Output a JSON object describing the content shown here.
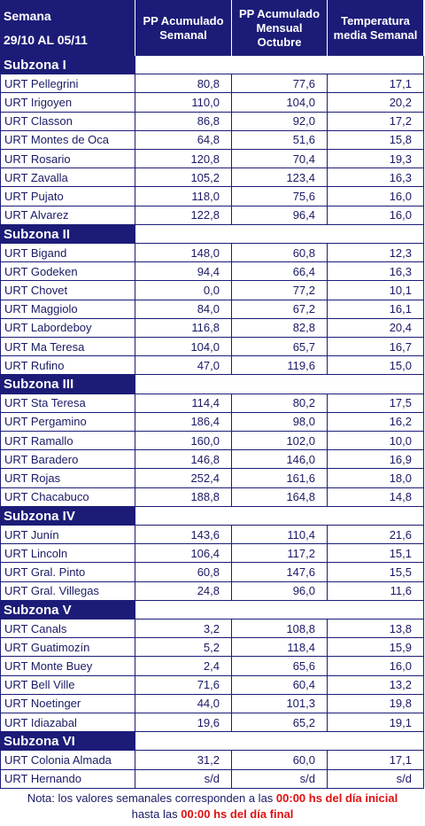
{
  "header": {
    "semana": "Semana",
    "dates": "29/10 AL 05/11",
    "col1": "PP Acumulado Semanal",
    "col2": "PP Acumulado Mensual Octubre",
    "col3": "Temperatura media Semanal"
  },
  "subzones": [
    {
      "title": "Subzona I",
      "rows": [
        [
          "URT Pellegrini",
          "80,8",
          "77,6",
          "17,1"
        ],
        [
          "URT Irigoyen",
          "110,0",
          "104,0",
          "20,2"
        ],
        [
          "URT Classon",
          "86,8",
          "92,0",
          "17,2"
        ],
        [
          "URT Montes de Oca",
          "64,8",
          "51,6",
          "15,8"
        ],
        [
          "URT Rosario",
          "120,8",
          "70,4",
          "19,3"
        ],
        [
          "URT Zavalla",
          "105,2",
          "123,4",
          "16,3"
        ],
        [
          "URT Pujato",
          "118,0",
          "75,6",
          "16,0"
        ],
        [
          "URT Alvarez",
          "122,8",
          "96,4",
          "16,0"
        ]
      ]
    },
    {
      "title": "Subzona II",
      "rows": [
        [
          "URT Bigand",
          "148,0",
          "60,8",
          "12,3"
        ],
        [
          "URT Godeken",
          "94,4",
          "66,4",
          "16,3"
        ],
        [
          "URT Chovet",
          "0,0",
          "77,2",
          "10,1"
        ],
        [
          "URT Maggiolo",
          "84,0",
          "67,2",
          "16,1"
        ],
        [
          "URT Labordeboy",
          "116,8",
          "82,8",
          "20,4"
        ],
        [
          "URT Ma Teresa",
          "104,0",
          "65,7",
          "16,7"
        ],
        [
          "URT Rufino",
          "47,0",
          "119,6",
          "15,0"
        ]
      ]
    },
    {
      "title": "Subzona III",
      "rows": [
        [
          "URT Sta Teresa",
          "114,4",
          "80,2",
          "17,5"
        ],
        [
          "URT Pergamino",
          "186,4",
          "98,0",
          "16,2"
        ],
        [
          "URT Ramallo",
          "160,0",
          "102,0",
          "10,0"
        ],
        [
          "URT Baradero",
          "146,8",
          "146,0",
          "16,9"
        ],
        [
          "URT Rojas",
          "252,4",
          "161,6",
          "18,0"
        ],
        [
          "URT Chacabuco",
          "188,8",
          "164,8",
          "14,8"
        ]
      ]
    },
    {
      "title": "Subzona IV",
      "rows": [
        [
          "URT Junín",
          "143,6",
          "110,4",
          "21,6"
        ],
        [
          "URT Lincoln",
          "106,4",
          "117,2",
          "15,1"
        ],
        [
          "URT Gral. Pinto",
          "60,8",
          "147,6",
          "15,5"
        ],
        [
          "URT Gral. Villegas",
          "24,8",
          "96,0",
          "11,6"
        ]
      ]
    },
    {
      "title": "Subzona V",
      "rows": [
        [
          "URT Canals",
          "3,2",
          "108,8",
          "13,8"
        ],
        [
          "URT Guatimozín",
          "5,2",
          "118,4",
          "15,9"
        ],
        [
          "URT Monte Buey",
          "2,4",
          "65,6",
          "16,0"
        ],
        [
          "URT Bell Ville",
          "71,6",
          "60,4",
          "13,2"
        ],
        [
          "URT Noetinger",
          "44,0",
          "101,3",
          "19,8"
        ],
        [
          "URT Idiazabal",
          "19,6",
          "65,2",
          "19,1"
        ]
      ]
    },
    {
      "title": "Subzona VI",
      "rows": [
        [
          "URT Colonia Almada",
          "31,2",
          "60,0",
          "17,1"
        ],
        [
          "URT Hernando",
          "s/d",
          "s/d",
          "s/d"
        ]
      ]
    }
  ],
  "note": {
    "part1": "Nota: los valores semanales corresponden a las ",
    "red1": "00:00 hs del día inicial",
    "part2": " hasta las ",
    "red2": "00:00 hs del día final"
  }
}
